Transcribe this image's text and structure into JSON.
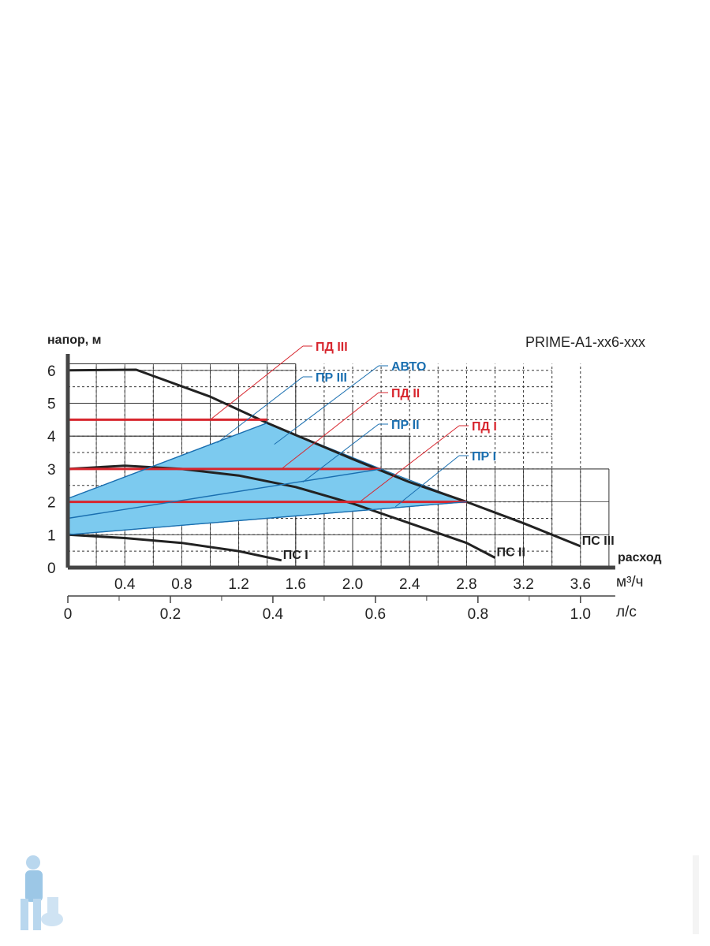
{
  "chart_data": {
    "type": "line",
    "title": "PRIME-A1-xx6-xxx",
    "ylabel": "напор, м",
    "xlabel": "расход",
    "x_unit": "м³/ч",
    "x2_unit": "л/с",
    "ylim": [
      0,
      6.5
    ],
    "xlim": [
      0,
      3.8
    ],
    "y_ticks": [
      0,
      1,
      2,
      3,
      4,
      5,
      6
    ],
    "x_ticks": [
      0.4,
      0.8,
      1.2,
      1.6,
      2.0,
      2.4,
      2.8,
      3.2,
      3.6
    ],
    "x_tick_labels": [
      "0.4",
      "0.8",
      "1.2",
      "1.6",
      "2.0",
      "2.4",
      "2.8",
      "3.2",
      "3.6"
    ],
    "x2_ticks": [
      0,
      0.2,
      0.4,
      0.6,
      0.8,
      1.0
    ],
    "x2_tick_labels": [
      "0",
      "0.2",
      "0.4",
      "0.6",
      "0.8",
      "1.0"
    ],
    "y_tick_labels": [
      "0",
      "1",
      "2",
      "3",
      "4",
      "5",
      "6"
    ],
    "grid": true,
    "series": [
      {
        "name": "ПС III",
        "color": "#222222",
        "x": [
          0,
          0.48,
          1.0,
          1.4,
          2.0,
          2.4,
          2.8,
          3.2,
          3.6
        ],
        "y": [
          6.0,
          6.02,
          5.2,
          4.4,
          3.3,
          2.6,
          2.0,
          1.35,
          0.65
        ]
      },
      {
        "name": "ПС II",
        "color": "#222222",
        "x": [
          0,
          0.4,
          0.8,
          1.2,
          1.6,
          2.0,
          2.4,
          2.8,
          3.0
        ],
        "y": [
          3.0,
          3.1,
          3.0,
          2.8,
          2.45,
          1.95,
          1.35,
          0.75,
          0.3
        ]
      },
      {
        "name": "ПС I",
        "color": "#222222",
        "x": [
          0,
          0.4,
          0.8,
          1.2,
          1.5
        ],
        "y": [
          1.0,
          0.9,
          0.75,
          0.5,
          0.22
        ]
      },
      {
        "name": "ПД III",
        "color": "#d7262e",
        "x": [
          0,
          1.4
        ],
        "y": [
          4.5,
          4.5
        ]
      },
      {
        "name": "ПД II",
        "color": "#d7262e",
        "x": [
          0,
          2.2
        ],
        "y": [
          3.0,
          3.0
        ]
      },
      {
        "name": "ПД I",
        "color": "#d7262e",
        "x": [
          0,
          2.8
        ],
        "y": [
          2.0,
          2.0
        ]
      },
      {
        "name": "ПР III",
        "color": "#1a6fb0",
        "x": [
          0,
          1.4
        ],
        "y": [
          2.1,
          4.4
        ]
      },
      {
        "name": "ПР II",
        "color": "#1a6fb0",
        "x": [
          0,
          2.2
        ],
        "y": [
          1.5,
          3.0
        ]
      },
      {
        "name": "ПР I",
        "color": "#1a6fb0",
        "x": [
          0,
          2.8
        ],
        "y": [
          1.0,
          2.0
        ]
      }
    ],
    "auto_region": {
      "name": "АВТО",
      "color": "#7ccaef",
      "x": [
        0,
        1.4,
        2.2,
        2.8,
        0
      ],
      "y": [
        2.1,
        4.4,
        3.0,
        2.0,
        1.0
      ]
    },
    "annotations": [
      {
        "text": "ПД III",
        "color": "#d7262e",
        "point_x": 1.0,
        "point_y": 4.5
      },
      {
        "text": "ПР III",
        "color": "#1a6fb0",
        "point_x": 1.05,
        "point_y": 3.8
      },
      {
        "text": "АВТО",
        "color": "#1a6fb0",
        "point_x": 1.45,
        "point_y": 3.75
      },
      {
        "text": "ПД II",
        "color": "#d7262e",
        "point_x": 1.5,
        "point_y": 3.0
      },
      {
        "text": "ПР II",
        "color": "#1a6fb0",
        "point_x": 1.65,
        "point_y": 2.6
      },
      {
        "text": "ПД I",
        "color": "#d7262e",
        "point_x": 2.05,
        "point_y": 2.0
      },
      {
        "text": "ПР I",
        "color": "#1a6fb0",
        "point_x": 2.3,
        "point_y": 1.85
      }
    ]
  }
}
